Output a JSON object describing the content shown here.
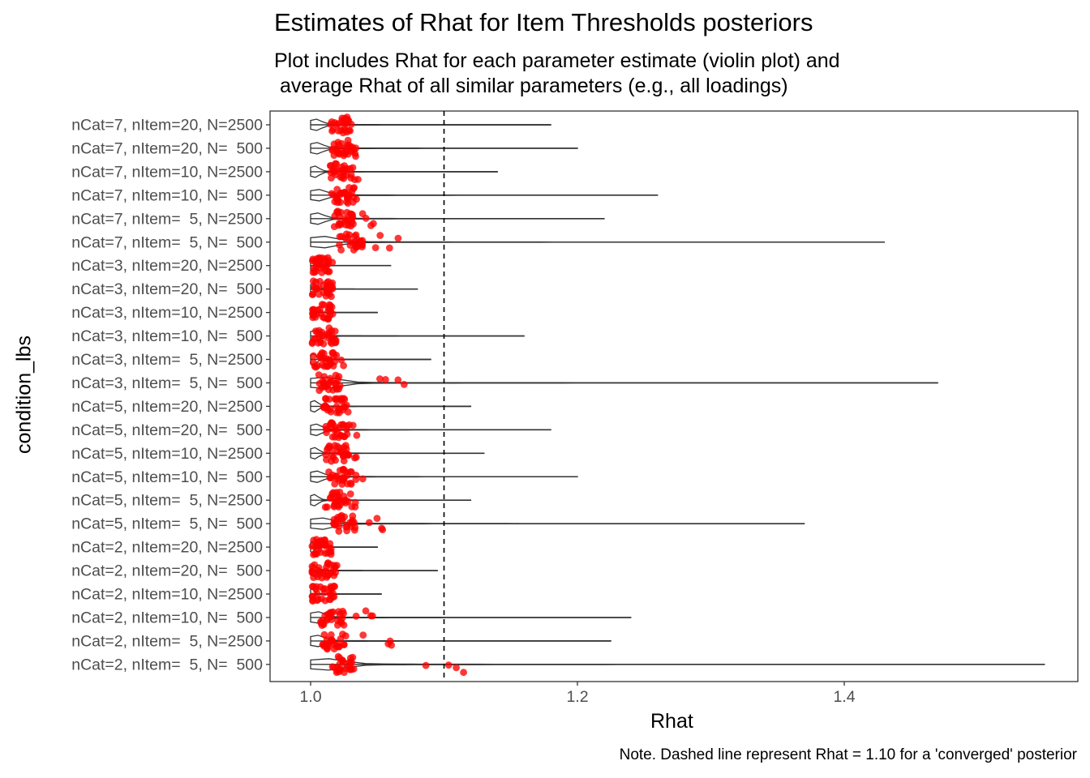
{
  "chart_data": {
    "type": "violin",
    "title": "Estimates of Rhat for Item Thresholds posteriors",
    "subtitle": "Plot includes Rhat for each parameter estimate (violin plot) and\n average Rhat of all similar parameters (e.g., all loadings)",
    "caption": "Note. Dashed line represent Rhat = 1.10 for a 'converged' posterior",
    "xlabel": "Rhat",
    "ylabel": "condition_lbs",
    "xlim": [
      0.975,
      1.575
    ],
    "x_ticks": [
      1.0,
      1.2,
      1.4
    ],
    "x_tick_labels": [
      "1.0",
      "1.2",
      "1.4"
    ],
    "reference_line": 1.1,
    "grid": false,
    "point_color": "#ff0000",
    "line_color": "#333333",
    "categories": [
      "nCat=7, nItem=20, N=2500",
      "nCat=7, nItem=20, N=  500",
      "nCat=7, nItem=10, N=2500",
      "nCat=7, nItem=10, N=  500",
      "nCat=7, nItem=  5, N=2500",
      "nCat=7, nItem=  5, N=  500",
      "nCat=3, nItem=20, N=2500",
      "nCat=3, nItem=20, N=  500",
      "nCat=3, nItem=10, N=2500",
      "nCat=3, nItem=10, N=  500",
      "nCat=3, nItem=  5, N=2500",
      "nCat=3, nItem=  5, N=  500",
      "nCat=5, nItem=20, N=2500",
      "nCat=5, nItem=20, N=  500",
      "nCat=5, nItem=10, N=2500",
      "nCat=5, nItem=10, N=  500",
      "nCat=5, nItem=  5, N=2500",
      "nCat=5, nItem=  5, N=  500",
      "nCat=2, nItem=20, N=2500",
      "nCat=2, nItem=20, N=  500",
      "nCat=2, nItem=10, N=2500",
      "nCat=2, nItem=10, N=  500",
      "nCat=2, nItem=  5, N=2500",
      "nCat=2, nItem=  5, N=  500"
    ],
    "min_rhat": [
      1.0,
      1.0,
      1.0,
      1.0,
      1.0,
      1.0,
      1.0,
      1.0,
      1.0,
      1.0,
      1.0,
      1.0,
      1.0,
      1.0,
      1.0,
      1.0,
      1.0,
      1.0,
      1.0,
      1.0,
      1.0,
      1.0,
      1.0,
      1.0
    ],
    "max_rhat": [
      1.18,
      1.2,
      1.14,
      1.26,
      1.22,
      1.43,
      1.06,
      1.08,
      1.05,
      1.16,
      1.09,
      1.47,
      1.12,
      1.18,
      1.13,
      1.2,
      1.12,
      1.37,
      1.05,
      1.095,
      1.053,
      1.24,
      1.225,
      1.55
    ],
    "avg_rhat_center": [
      1.022,
      1.025,
      1.022,
      1.024,
      1.026,
      1.03,
      1.008,
      1.008,
      1.008,
      1.01,
      1.01,
      1.015,
      1.018,
      1.02,
      1.02,
      1.022,
      1.02,
      1.025,
      1.007,
      1.01,
      1.01,
      1.016,
      1.018,
      1.025
    ],
    "avg_rhat_max": [
      1.03,
      1.035,
      1.04,
      1.035,
      1.05,
      1.075,
      1.015,
      1.015,
      1.015,
      1.02,
      1.025,
      1.088,
      1.03,
      1.035,
      1.035,
      1.04,
      1.035,
      1.065,
      1.015,
      1.02,
      1.02,
      1.055,
      1.07,
      1.12
    ]
  }
}
